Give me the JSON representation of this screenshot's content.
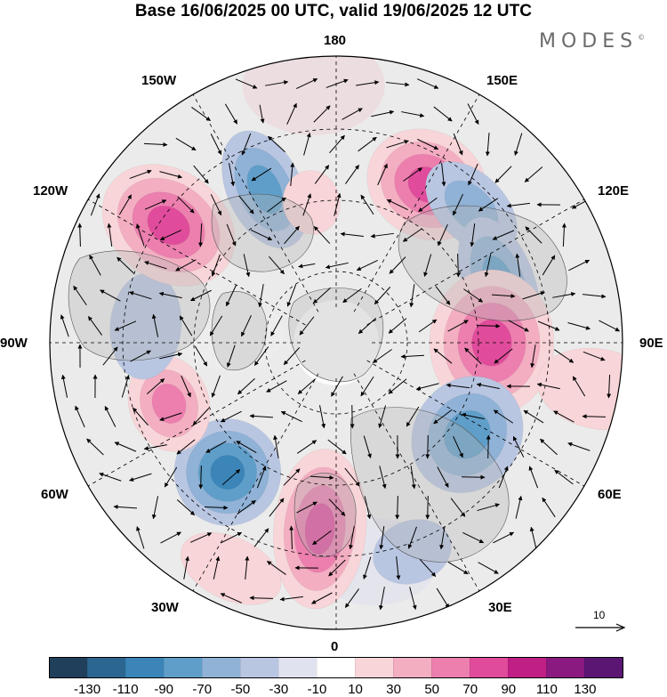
{
  "header": {
    "title": "Base 16/06/2025 00 UTC, valid 19/06/2025 12 UTC",
    "brand": "MODES",
    "brand_mark": "©"
  },
  "map": {
    "projection": "north polar stereographic",
    "longitude_labels": {
      "top": "180",
      "upper_right": "150E",
      "right_upper": "120E",
      "right": "90E",
      "right_lower": "60E",
      "lower_right": "30E",
      "bottom": "0",
      "lower_left": "30W",
      "left_lower": "60W",
      "left": "90W",
      "left_upper": "120W",
      "upper_left": "150W"
    },
    "anomaly_centres": [
      {
        "sign": "positive",
        "level": 90,
        "near_lon": "150E"
      },
      {
        "sign": "negative",
        "level": -50,
        "near_lon": "135E"
      },
      {
        "sign": "negative",
        "level": -70,
        "near_lon": "110E"
      },
      {
        "sign": "positive",
        "level": 90,
        "near_lon": "90E"
      },
      {
        "sign": "negative",
        "level": -70,
        "near_lon": "55E"
      },
      {
        "sign": "positive",
        "level": 90,
        "near_lon": "5W"
      },
      {
        "sign": "negative",
        "level": -90,
        "near_lon": "40W"
      },
      {
        "sign": "positive",
        "level": 70,
        "near_lon": "70W"
      },
      {
        "sign": "negative",
        "level": -30,
        "near_lon": "95W"
      },
      {
        "sign": "positive",
        "level": 90,
        "near_lon": "125W"
      },
      {
        "sign": "negative",
        "level": -70,
        "near_lon": "155W"
      },
      {
        "sign": "positive",
        "level": 30,
        "near_lon": "170W"
      },
      {
        "sign": "positive",
        "level": 30,
        "near_lon": "80E"
      },
      {
        "sign": "negative",
        "level": -30,
        "near_lon": "20E"
      },
      {
        "sign": "positive",
        "level": 30,
        "near_lon": "25W"
      }
    ]
  },
  "reference_vector": {
    "label": "10"
  },
  "colorbar": {
    "tick_labels": [
      "-130",
      "-110",
      "-90",
      "-70",
      "-50",
      "-30",
      "-10",
      "10",
      "30",
      "50",
      "70",
      "90",
      "110",
      "130"
    ],
    "colors": [
      "#1f3f5b",
      "#2b6691",
      "#3b85b8",
      "#5f9ec9",
      "#8fb2d6",
      "#b9c6e2",
      "#e0e2ef",
      "#ffffff",
      "#f8d5d8",
      "#f3aec2",
      "#ec7fae",
      "#e04c9b",
      "#c01f86",
      "#8b1a80",
      "#5b1674"
    ]
  }
}
